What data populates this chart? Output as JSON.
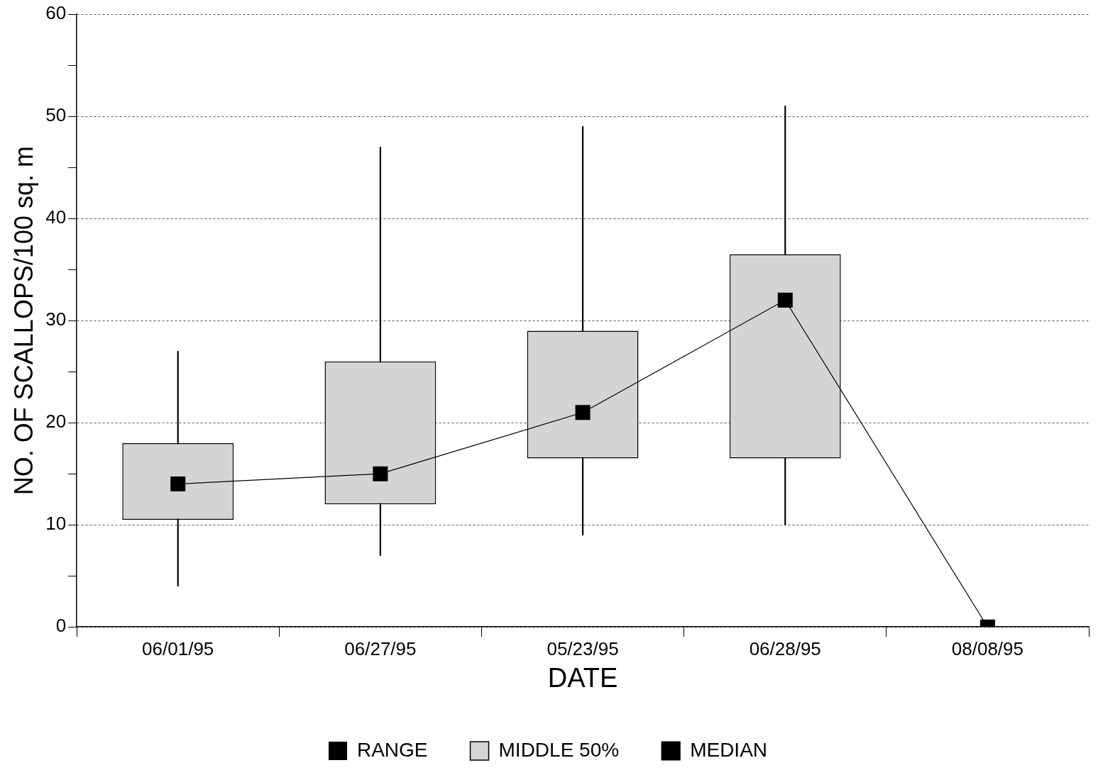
{
  "chart_data": {
    "type": "bar",
    "xlabel": "DATE",
    "ylabel": "NO. OF SCALLOPS/100 sq. m",
    "categories": [
      "06/01/95",
      "06/27/95",
      "05/23/95",
      "06/28/95",
      "08/08/95"
    ],
    "series": [
      {
        "name": "RANGE",
        "color": "#000000",
        "base": [
          4,
          7,
          9,
          10,
          null
        ],
        "values": [
          23,
          40,
          40,
          41,
          null
        ]
      },
      {
        "name": "MIDDLE 50%",
        "color": "#d4d4d4",
        "base": [
          10.5,
          12,
          16.5,
          16.5,
          null
        ],
        "values": [
          7.5,
          14,
          12.5,
          20,
          null
        ]
      },
      {
        "name": "MEDIAN",
        "type": "line",
        "color": "#000000",
        "values": [
          14,
          15,
          21,
          32,
          0
        ]
      }
    ],
    "ylim": [
      0,
      60
    ],
    "yticks": [
      0,
      {
        "value": 5,
        "label": null
      },
      10,
      {
        "value": 15,
        "label": null
      },
      20,
      {
        "value": 25,
        "label": null
      },
      30,
      {
        "value": 35,
        "label": null
      },
      40,
      {
        "value": 45,
        "label": null
      },
      50,
      {
        "value": 55,
        "label": null
      },
      60
    ],
    "grid": "y",
    "legend": "bottom",
    "marker": "square",
    "line_style": "solid"
  }
}
